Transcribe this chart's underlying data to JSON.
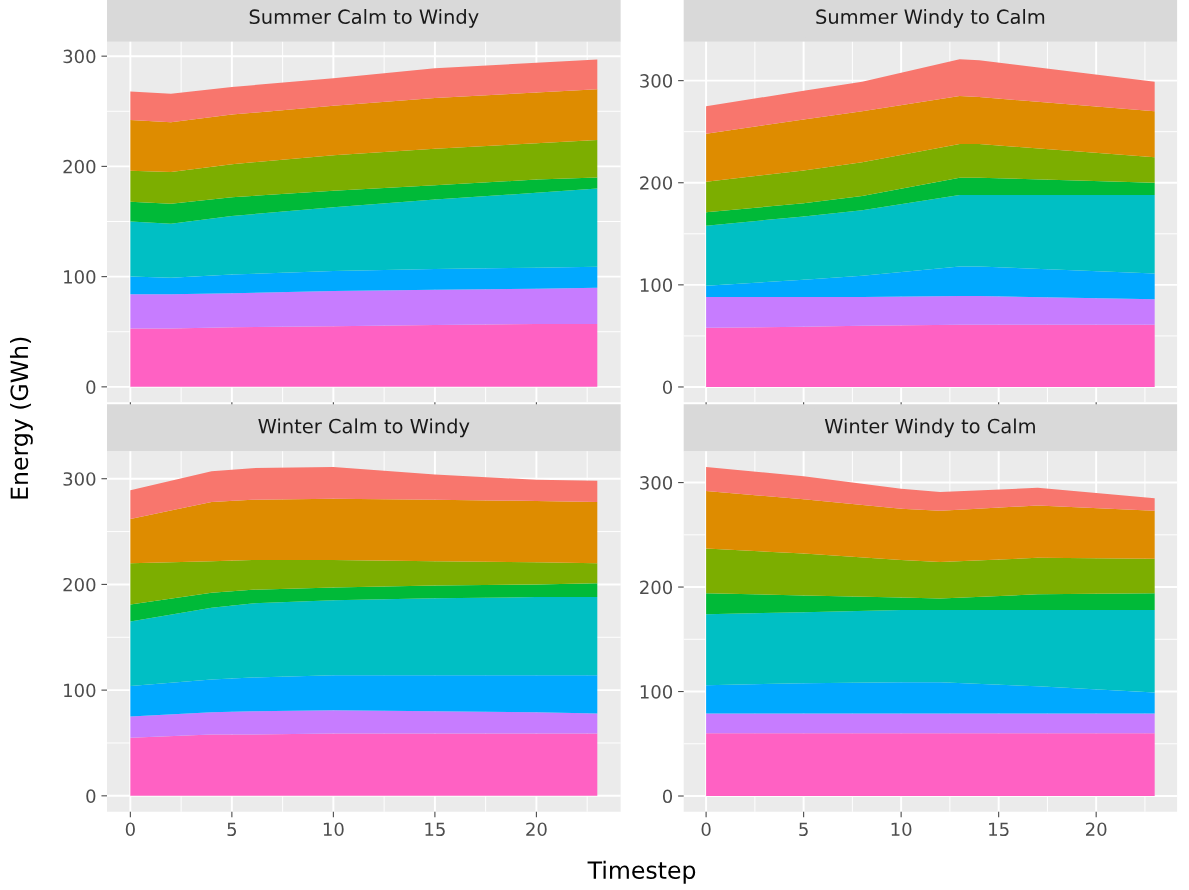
{
  "chart_data": [
    {
      "type": "area",
      "stacked": true,
      "title": "Summer Calm to Windy",
      "ylabel": "Energy (GWh)",
      "x": [
        0,
        2,
        5,
        10,
        15,
        20,
        23
      ],
      "xlim": [
        -1.15,
        24.15
      ],
      "xticks": [
        0,
        5,
        10,
        15,
        20
      ],
      "ylim": [
        -14,
        313
      ],
      "yticks": [
        0,
        100,
        200,
        300
      ],
      "grid": true,
      "tick_labels": "y",
      "series": [
        {
          "color": "#ff61c3",
          "values": [
            53,
            53,
            54,
            55,
            56,
            57,
            57
          ]
        },
        {
          "color": "#c77cff",
          "values": [
            31,
            31,
            31,
            32,
            32,
            32,
            33
          ]
        },
        {
          "color": "#00a9ff",
          "values": [
            16,
            15,
            17,
            18,
            19,
            19,
            19
          ]
        },
        {
          "color": "#00bfc4",
          "values": [
            50,
            49,
            53,
            58,
            63,
            68,
            71
          ]
        },
        {
          "color": "#00ba38",
          "values": [
            18,
            18,
            17,
            15,
            13,
            12,
            10
          ]
        },
        {
          "color": "#7cae00",
          "values": [
            28,
            29,
            30,
            32,
            33,
            33,
            34
          ]
        },
        {
          "color": "#de8c00",
          "values": [
            46,
            45,
            45,
            45,
            46,
            46,
            46
          ]
        },
        {
          "color": "#f8766d",
          "values": [
            26,
            26,
            25,
            25,
            27,
            27,
            27
          ]
        }
      ]
    },
    {
      "type": "area",
      "stacked": true,
      "title": "Summer Windy to Calm",
      "x": [
        0,
        5,
        8,
        13,
        14,
        23
      ],
      "xlim": [
        -1.15,
        24.15
      ],
      "xticks": [
        0,
        5,
        10,
        15,
        20
      ],
      "ylim": [
        -15,
        338
      ],
      "yticks": [
        0,
        100,
        200,
        300
      ],
      "grid": true,
      "tick_labels": "y",
      "series": [
        {
          "color": "#ff61c3",
          "values": [
            58,
            59,
            60,
            61,
            61,
            61
          ]
        },
        {
          "color": "#c77cff",
          "values": [
            30,
            29,
            28,
            28,
            28,
            25
          ]
        },
        {
          "color": "#00a9ff",
          "values": [
            11,
            17,
            21,
            29,
            29,
            25
          ]
        },
        {
          "color": "#00bfc4",
          "values": [
            59,
            62,
            64,
            70,
            70,
            77
          ]
        },
        {
          "color": "#00ba38",
          "values": [
            13,
            13,
            14,
            17,
            17,
            12
          ]
        },
        {
          "color": "#7cae00",
          "values": [
            30,
            32,
            33,
            33,
            33,
            25
          ]
        },
        {
          "color": "#de8c00",
          "values": [
            47,
            50,
            50,
            47,
            46,
            45
          ]
        },
        {
          "color": "#f8766d",
          "values": [
            27,
            28,
            29,
            36,
            36,
            29
          ]
        }
      ]
    },
    {
      "type": "area",
      "stacked": true,
      "title": "Winter Calm to Windy",
      "xlabel": "Timestep",
      "x": [
        0,
        4,
        6,
        10,
        15,
        20,
        23
      ],
      "xlim": [
        -1.15,
        24.15
      ],
      "xticks": [
        0,
        5,
        10,
        15,
        20
      ],
      "ylim": [
        -15,
        326
      ],
      "yticks": [
        0,
        100,
        200,
        300
      ],
      "grid": true,
      "series": [
        {
          "color": "#ff61c3",
          "values": [
            55,
            58,
            58,
            59,
            59,
            59,
            59
          ]
        },
        {
          "color": "#c77cff",
          "values": [
            20,
            21,
            22,
            22,
            21,
            20,
            19
          ]
        },
        {
          "color": "#00a9ff",
          "values": [
            29,
            31,
            32,
            33,
            34,
            35,
            36
          ]
        },
        {
          "color": "#00bfc4",
          "values": [
            61,
            68,
            70,
            71,
            73,
            74,
            74
          ]
        },
        {
          "color": "#00ba38",
          "values": [
            16,
            14,
            13,
            12,
            12,
            12,
            13
          ]
        },
        {
          "color": "#7cae00",
          "values": [
            39,
            30,
            28,
            26,
            23,
            21,
            19
          ]
        },
        {
          "color": "#de8c00",
          "values": [
            42,
            56,
            57,
            58,
            58,
            58,
            58
          ]
        },
        {
          "color": "#f8766d",
          "values": [
            27,
            29,
            30,
            30,
            24,
            20,
            20
          ]
        }
      ]
    },
    {
      "type": "area",
      "stacked": true,
      "title": "Winter Windy to Calm",
      "x": [
        0,
        5,
        10,
        12,
        17,
        23
      ],
      "xlim": [
        -1.15,
        24.15
      ],
      "xticks": [
        0,
        5,
        10,
        15,
        20
      ],
      "ylim": [
        -15,
        330
      ],
      "yticks": [
        0,
        100,
        200,
        300
      ],
      "grid": true,
      "series": [
        {
          "color": "#ff61c3",
          "values": [
            60,
            60,
            60,
            60,
            60,
            60
          ]
        },
        {
          "color": "#c77cff",
          "values": [
            19,
            19,
            19,
            19,
            19,
            19
          ]
        },
        {
          "color": "#00a9ff",
          "values": [
            27,
            29,
            30,
            30,
            26,
            20
          ]
        },
        {
          "color": "#00bfc4",
          "values": [
            68,
            68,
            69,
            69,
            73,
            79
          ]
        },
        {
          "color": "#00ba38",
          "values": [
            20,
            16,
            12,
            11,
            15,
            16
          ]
        },
        {
          "color": "#7cae00",
          "values": [
            43,
            40,
            36,
            35,
            35,
            33
          ]
        },
        {
          "color": "#de8c00",
          "values": [
            55,
            52,
            49,
            49,
            50,
            46
          ]
        },
        {
          "color": "#f8766d",
          "values": [
            23,
            22,
            19,
            18,
            17,
            12
          ]
        }
      ]
    }
  ]
}
